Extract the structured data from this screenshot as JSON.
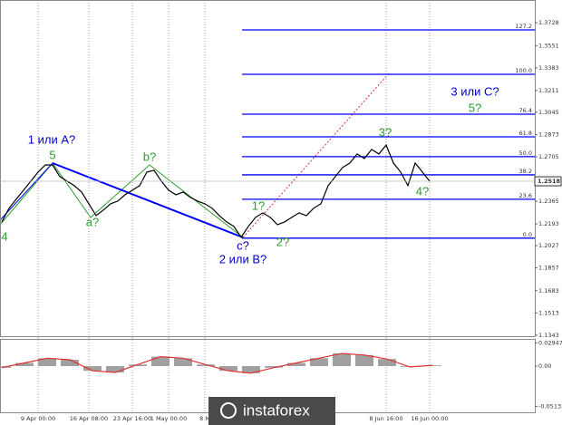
{
  "chart_data": [
    {
      "type": "line",
      "color": "#000000",
      "categories": [
        null,
        null,
        null,
        null,
        null,
        "9 Apr 00:00",
        null,
        null,
        null,
        null,
        null,
        null,
        "16 Apr 08:00",
        null,
        null,
        null,
        null,
        null,
        "23 Apr 16:00",
        null,
        null,
        null,
        null,
        "1 May 00:00",
        null,
        null,
        null,
        null,
        "8 M",
        null,
        null,
        null,
        null,
        null,
        null,
        null,
        null,
        null,
        null,
        null,
        null,
        null,
        null,
        null,
        null,
        null,
        null,
        null,
        null,
        null,
        null,
        null,
        null,
        "8 Jun 16:00",
        null,
        null,
        null,
        null,
        null,
        "16 Jun 00:00"
      ],
      "values": [
        1.2208,
        1.2312,
        1.2381,
        1.245,
        1.2519,
        1.2588,
        1.2643,
        1.2643,
        1.2554,
        1.2519,
        1.2484,
        1.2436,
        1.2346,
        1.2256,
        1.2298,
        1.2346,
        1.2367,
        1.2415,
        1.245,
        1.2484,
        1.2588,
        1.2602,
        1.2519,
        1.245,
        1.2415,
        1.2436,
        1.2395,
        1.2367,
        1.2346,
        1.2312,
        1.2256,
        1.2208,
        1.2174,
        1.2091,
        1.2174,
        1.2243,
        1.2277,
        1.2243,
        1.2187,
        1.2208,
        1.2243,
        1.2277,
        1.2256,
        1.2312,
        1.2346,
        1.2484,
        1.2554,
        1.2623,
        1.2657,
        1.2726,
        1.2692,
        1.2761,
        1.2726,
        1.2795,
        1.2657,
        1.2588,
        1.2484,
        1.2657,
        1.2588,
        1.2518
      ],
      "ylim": [
        1.1329,
        1.3901
      ],
      "yticks": [
        1.3728,
        1.3551,
        1.3383,
        1.3211,
        1.3045,
        1.2873,
        1.2705,
        1.2365,
        1.2193,
        1.2027,
        1.1857,
        1.1683,
        1.1513,
        1.1343
      ],
      "current_price": 1.2518,
      "fib_levels": [
        {
          "text": "127.2",
          "price": 1.3673
        },
        {
          "text": "100.0",
          "price": 1.3334
        },
        {
          "text": "76.4",
          "price": 1.303
        },
        {
          "text": "61.8",
          "price": 1.2857
        },
        {
          "text": "50.0",
          "price": 1.2706
        },
        {
          "text": "38.2",
          "price": 1.2567
        },
        {
          "text": "23.6",
          "price": 1.2381
        },
        {
          "text": "0.0",
          "price": 1.2084
        }
      ],
      "annotations": [
        "4",
        "5",
        "1 или A?",
        "a?",
        "b?",
        "c?",
        "2 или B?",
        "1?",
        "2?",
        "3?",
        "4?",
        "3 или C?",
        "5?"
      ],
      "watermark": "instaforex"
    },
    {
      "type": "bar",
      "color": "#a0a0a0",
      "line_color": "#e03030",
      "values": [
        -0.002,
        0.004,
        0.01,
        0.008,
        -0.006,
        -0.008,
        0.002,
        0.012,
        0.01,
        0.002,
        -0.006,
        -0.009,
        -0.002,
        0.004,
        0.01,
        0.016,
        0.014,
        0.009,
        -0.001,
        0.001
      ],
      "ylim": [
        -0.0621,
        0.0368
      ],
      "yticks": [
        0.02947,
        {
          "value": 0,
          "label": "0.00"
        },
        -0.05133
      ]
    }
  ]
}
